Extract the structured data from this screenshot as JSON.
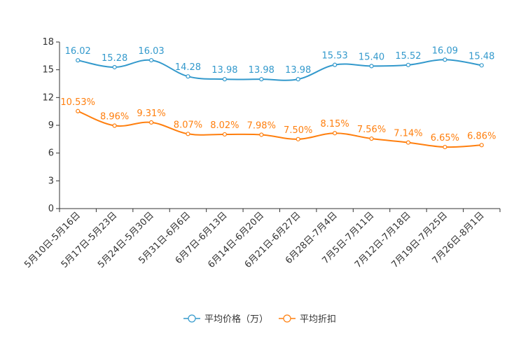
{
  "chart_data": {
    "type": "line",
    "title": "",
    "xlabel": "",
    "ylabel": "",
    "ylim": [
      0,
      18
    ],
    "yticks": [
      0,
      3,
      6,
      9,
      12,
      15,
      18
    ],
    "grid": false,
    "legend_position": "bottom",
    "categories": [
      "5月10日-5月16日",
      "5月17日-5月23日",
      "5月24日-5月30日",
      "5月31日-6月6日",
      "6月7日-6月13日",
      "6月14日-6月20日",
      "6月21日-6月27日",
      "6月28日-7月4日",
      "7月5日-7月11日",
      "7月12日-7月18日",
      "7月19日-7月25日",
      "7月26日-8月1日"
    ],
    "series": [
      {
        "name": "平均价格（万）",
        "color": "#3399cc",
        "values": [
          16.02,
          15.28,
          16.03,
          14.28,
          13.98,
          13.98,
          13.98,
          15.53,
          15.4,
          15.52,
          16.09,
          15.48
        ],
        "labels": [
          "16.02",
          "15.28",
          "16.03",
          "14.28",
          "13.98",
          "13.98",
          "13.98",
          "15.53",
          "15.40",
          "15.52",
          "16.09",
          "15.48"
        ]
      },
      {
        "name": "平均折扣",
        "color": "#ff7f0e",
        "values": [
          10.53,
          8.96,
          9.31,
          8.07,
          8.02,
          7.98,
          7.5,
          8.15,
          7.56,
          7.14,
          6.65,
          6.86
        ],
        "labels": [
          "10.53%",
          "8.96%",
          "9.31%",
          "8.07%",
          "8.02%",
          "7.98%",
          "7.50%",
          "8.15%",
          "7.56%",
          "7.14%",
          "6.65%",
          "6.86%"
        ]
      }
    ]
  }
}
